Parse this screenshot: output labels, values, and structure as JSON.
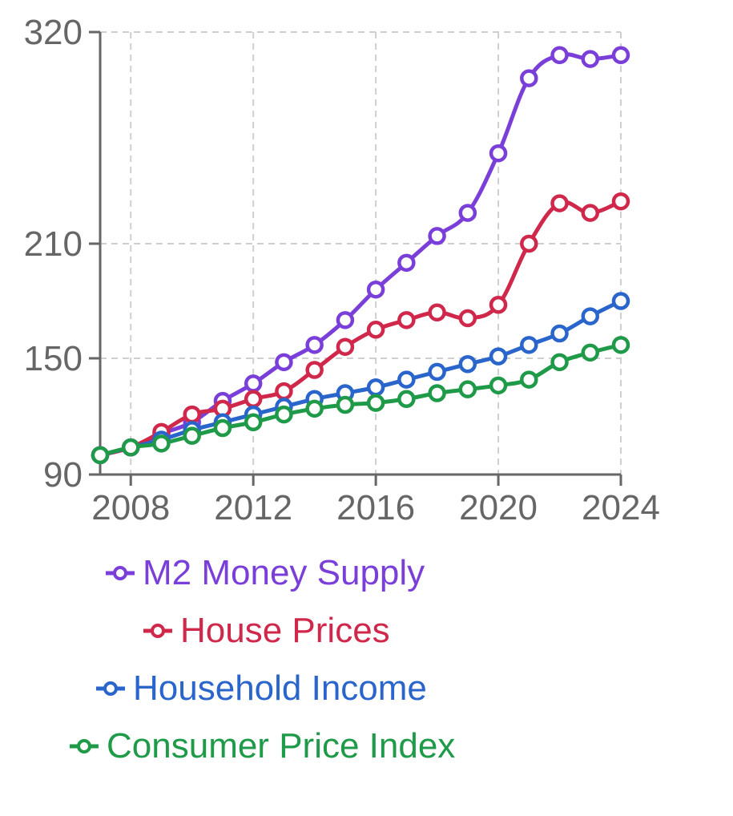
{
  "chart_data": {
    "type": "line",
    "title": "",
    "xlabel": "",
    "ylabel": "",
    "x": [
      2007,
      2008,
      2009,
      2010,
      2011,
      2012,
      2013,
      2014,
      2015,
      2016,
      2017,
      2018,
      2019,
      2020,
      2021,
      2022,
      2023,
      2024
    ],
    "xlim": [
      2007,
      2024
    ],
    "ylim": [
      90,
      320
    ],
    "x_ticks": [
      2008,
      2012,
      2016,
      2020,
      2024
    ],
    "y_ticks": [
      90,
      150,
      210,
      320
    ],
    "grid": true,
    "legend_position": "bottom",
    "series": [
      {
        "name": "M2 Money Supply",
        "color": "#7b3fd9",
        "values": [
          100,
          104,
          111,
          117,
          128,
          137,
          148,
          157,
          170,
          186,
          200,
          214,
          226,
          257,
          296,
          308,
          306,
          308
        ]
      },
      {
        "name": "House Prices",
        "color": "#d0284b",
        "values": [
          100,
          104,
          112,
          121,
          124,
          129,
          133,
          144,
          156,
          165,
          170,
          174,
          171,
          178,
          210,
          231,
          226,
          232
        ]
      },
      {
        "name": "Household Income",
        "color": "#2a65cc",
        "values": [
          100,
          104,
          108,
          113,
          117,
          121,
          125,
          129,
          132,
          135,
          139,
          143,
          147,
          151,
          157,
          163,
          172,
          180
        ]
      },
      {
        "name": "Consumer Price Index",
        "color": "#1e9a48",
        "values": [
          100,
          104,
          106,
          110,
          114,
          117,
          121,
          124,
          126,
          127,
          129,
          132,
          134,
          136,
          139,
          148,
          153,
          157
        ]
      }
    ]
  }
}
